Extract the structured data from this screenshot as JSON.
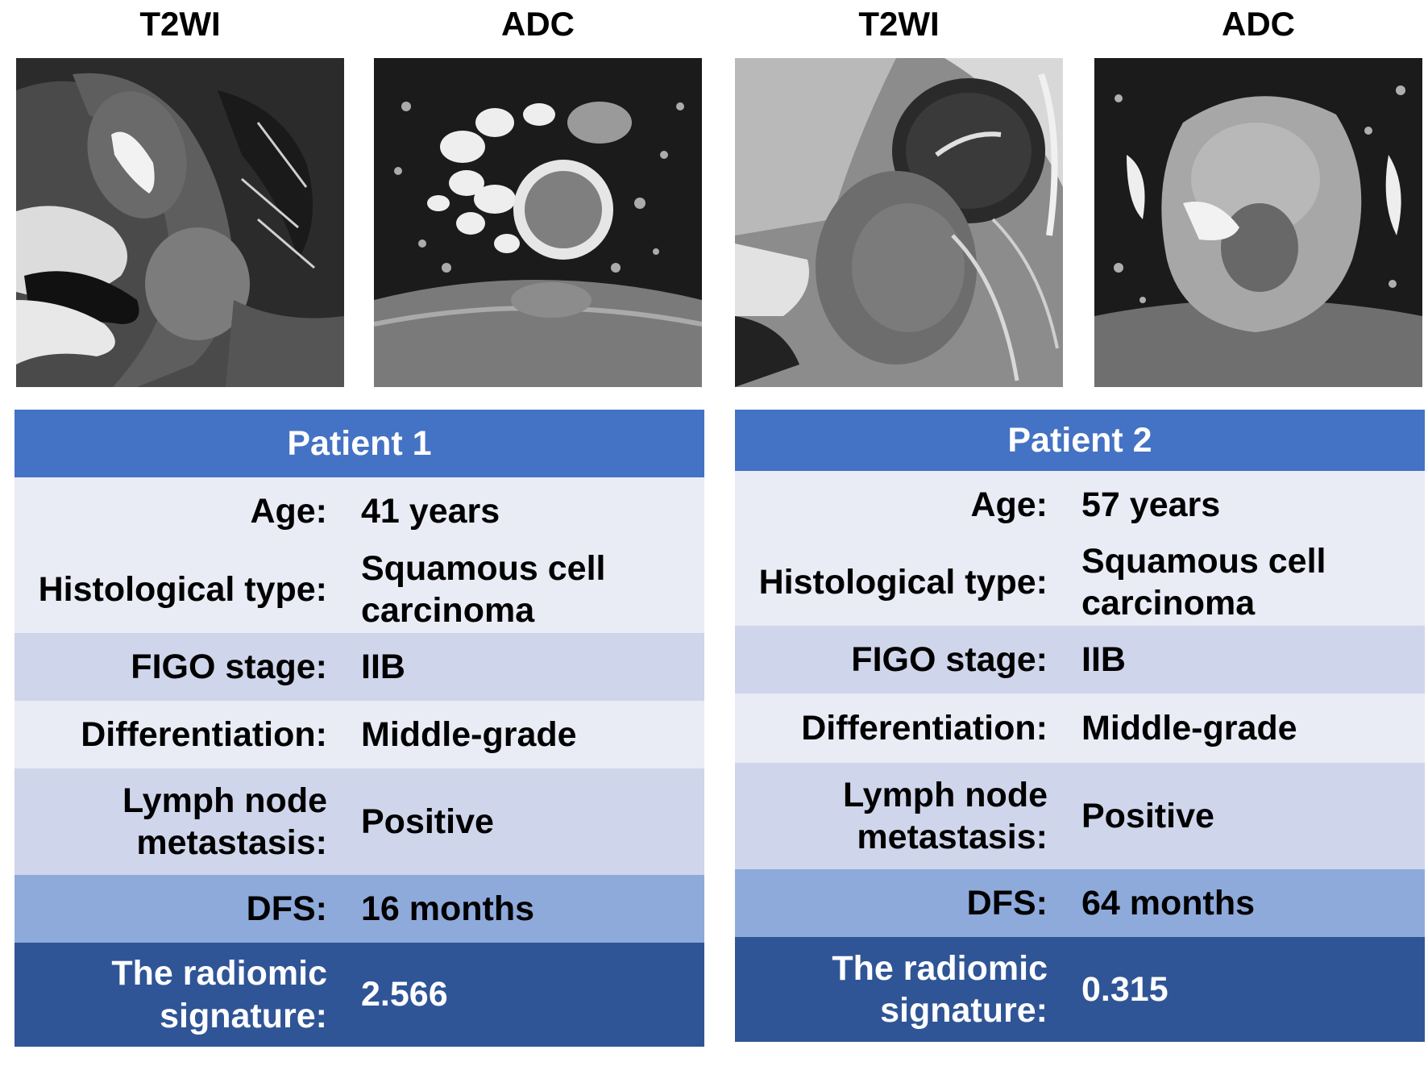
{
  "image_labels": [
    "T2WI",
    "ADC",
    "T2WI",
    "ADC"
  ],
  "patients": [
    {
      "title": "Patient 1",
      "rows": [
        {
          "key": "Age:",
          "value": "41 years"
        },
        {
          "key": "Histological type:",
          "value": "Squamous cell carcinoma"
        },
        {
          "key": "FIGO stage:",
          "value": "IIB"
        },
        {
          "key": "Differentiation:",
          "value": "Middle-grade"
        },
        {
          "key": "Lymph node metastasis:",
          "value": "Positive"
        },
        {
          "key": "DFS:",
          "value": "16 months"
        },
        {
          "key": "The radiomic signature:",
          "value": "2.566"
        }
      ]
    },
    {
      "title": "Patient 2",
      "rows": [
        {
          "key": "Age:",
          "value": "57 years"
        },
        {
          "key": "Histological type:",
          "value": "Squamous cell carcinoma"
        },
        {
          "key": "FIGO stage:",
          "value": "IIB"
        },
        {
          "key": "Differentiation:",
          "value": "Middle-grade"
        },
        {
          "key": "Lymph node metastasis:",
          "value": "Positive"
        },
        {
          "key": "DFS:",
          "value": "64 months"
        },
        {
          "key": "The radiomic signature:",
          "value": "0.315"
        }
      ]
    }
  ],
  "colors": {
    "header": "#4472c4",
    "row_light": "#e9ebf5",
    "row_mid": "#cfd5ea",
    "row_dfs": "#8eaadb",
    "row_signature": "#2f5597"
  }
}
